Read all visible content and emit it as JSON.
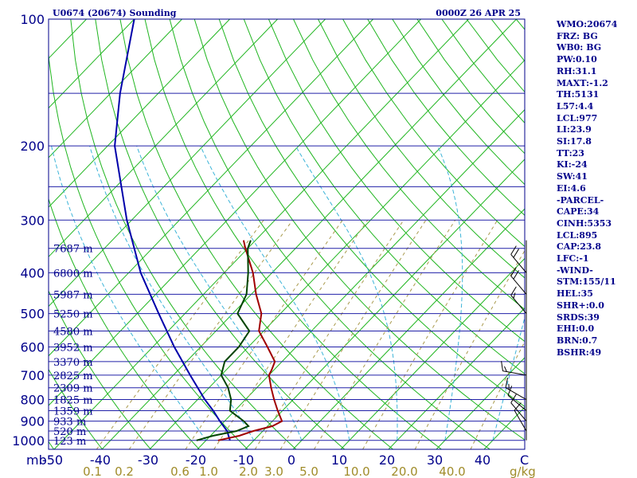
{
  "chart_data": {
    "type": "skew-t",
    "title": "U0674 (20674) Sounding",
    "valid_time": "0000Z 26 APR 25",
    "ylabel": "mb",
    "xlabel": "C",
    "mixing_ratio_unit": "g/kg",
    "pressure_ticks": [
      100,
      200,
      300,
      400,
      500,
      600,
      700,
      800,
      900,
      1000
    ],
    "temperature_ticks": [
      -50,
      -40,
      -30,
      -20,
      -10,
      0,
      10,
      20,
      30,
      40
    ],
    "temperature_tick_labels": [
      "-50",
      "-40",
      "-30",
      "-20",
      "-10",
      "0",
      "10",
      "20",
      "30",
      "40"
    ],
    "mixing_ratio_labels": [
      "0.1",
      "0.2",
      "0.6",
      "1.0",
      "2.0",
      "3.0",
      "5.0",
      "10.0",
      "20.0",
      "40.0"
    ],
    "height_labels": [
      {
        "p": 350,
        "label": "7687 m"
      },
      {
        "p": 400,
        "label": "6800 m"
      },
      {
        "p": 450,
        "label": "5987 m"
      },
      {
        "p": 500,
        "label": "5250 m"
      },
      {
        "p": 550,
        "label": "4580 m"
      },
      {
        "p": 600,
        "label": "3952 m"
      },
      {
        "p": 650,
        "label": "3370 m"
      },
      {
        "p": 700,
        "label": "2825 m"
      },
      {
        "p": 750,
        "label": "2309 m"
      },
      {
        "p": 800,
        "label": "1825 m"
      },
      {
        "p": 850,
        "label": "1359 m"
      },
      {
        "p": 900,
        "label": "933 m"
      },
      {
        "p": 950,
        "label": "520 m"
      },
      {
        "p": 1000,
        "label": "123 m"
      }
    ],
    "series": [
      {
        "name": "Temperature",
        "color": "#a00000",
        "p": [
          1000,
          975,
          950,
          925,
          900,
          850,
          800,
          750,
          700,
          680,
          650,
          600,
          550,
          500,
          450,
          400,
          350,
          335
        ],
        "t": [
          -17.5,
          -14,
          -12,
          -9,
          -8,
          -11,
          -14,
          -17,
          -20,
          -20.5,
          -21.5,
          -26,
          -31,
          -34,
          -39,
          -44,
          -50.5,
          -52.5
        ]
      },
      {
        "name": "Dewpoint",
        "color": "#004400",
        "p": [
          1000,
          975,
          950,
          925,
          900,
          850,
          800,
          750,
          700,
          650,
          600,
          550,
          500,
          450,
          400,
          350,
          335
        ],
        "td": [
          -22,
          -19.5,
          -15.5,
          -14,
          -16,
          -21,
          -23,
          -26,
          -30,
          -32,
          -32,
          -33,
          -39,
          -41,
          -45,
          -50,
          -51
        ]
      },
      {
        "name": "Parcel",
        "color": "#0000aa",
        "p": [
          1000,
          950,
          900,
          850,
          800,
          700,
          600,
          500,
          400,
          300,
          200,
          150,
          100
        ],
        "t": [
          -15,
          -17.5,
          -21,
          -24.5,
          -28.5,
          -36.5,
          -45.5,
          -55.5,
          -67.5,
          -81,
          -98.5,
          -108,
          -120
        ]
      }
    ],
    "wind_barbs": [
      {
        "p": 400,
        "dir": 320,
        "spd": 20
      },
      {
        "p": 450,
        "dir": 320,
        "spd": 20
      },
      {
        "p": 500,
        "dir": 320,
        "spd": 15
      },
      {
        "p": 700,
        "dir": 280,
        "spd": 15
      },
      {
        "p": 800,
        "dir": 300,
        "spd": 15
      },
      {
        "p": 850,
        "dir": 310,
        "spd": 10
      },
      {
        "p": 900,
        "dir": 320,
        "spd": 10
      },
      {
        "p": 950,
        "dir": 330,
        "spd": 10
      }
    ],
    "indices": [
      "WMO:20674",
      "FRZ: BG",
      "WB0: BG",
      "PW:0.10",
      "RH:31.1",
      "MAXT:-1.2",
      "TH:5131",
      "L57:4.4",
      "LCL:977",
      "LI:23.9",
      "SI:17.8",
      "TT:23",
      "KI:-24",
      "SW:41",
      "EI:4.6",
      "-PARCEL-",
      "CAPE:34",
      "CINH:5353",
      "LCL:895",
      "CAP:23.8",
      "LFC:-1",
      "-WIND-",
      "STM:155/11",
      "HEL:35",
      "SHR+:0.0",
      "SRDS:39",
      "EHI:0.0",
      "BRN:0.7",
      "BSHR:49"
    ]
  }
}
